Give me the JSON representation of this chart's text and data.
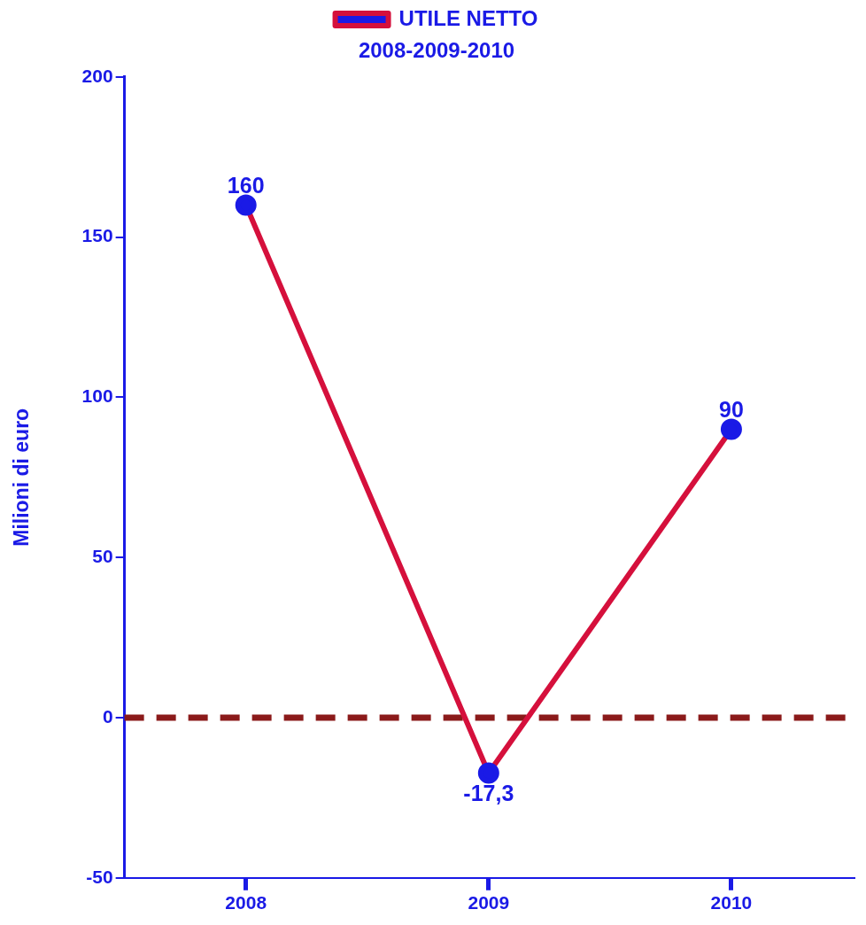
{
  "chart_data": {
    "type": "line",
    "title": "2008-2009-2010",
    "ylabel": "Milioni di euro",
    "categories": [
      "2008",
      "2009",
      "2010"
    ],
    "series": [
      {
        "name": "UTILE NETTO",
        "color": "#d5103c",
        "colors": [
          "#1a1ae6",
          "#1a1ae6",
          "#1a1ae6"
        ],
        "values": [
          160,
          -17.3,
          90
        ],
        "value_labels": [
          "160",
          "-17,3",
          "90"
        ]
      }
    ],
    "ylim": [
      -50,
      200
    ],
    "yticks": [
      -50,
      0,
      50,
      100,
      150,
      200
    ],
    "ref_lines": [
      {
        "axis": "y",
        "value": 0,
        "color": "#8b1a1a",
        "line_style": "dashed"
      }
    ],
    "grid": false,
    "legend": "top",
    "marker": "circle",
    "line_style": "solid"
  }
}
